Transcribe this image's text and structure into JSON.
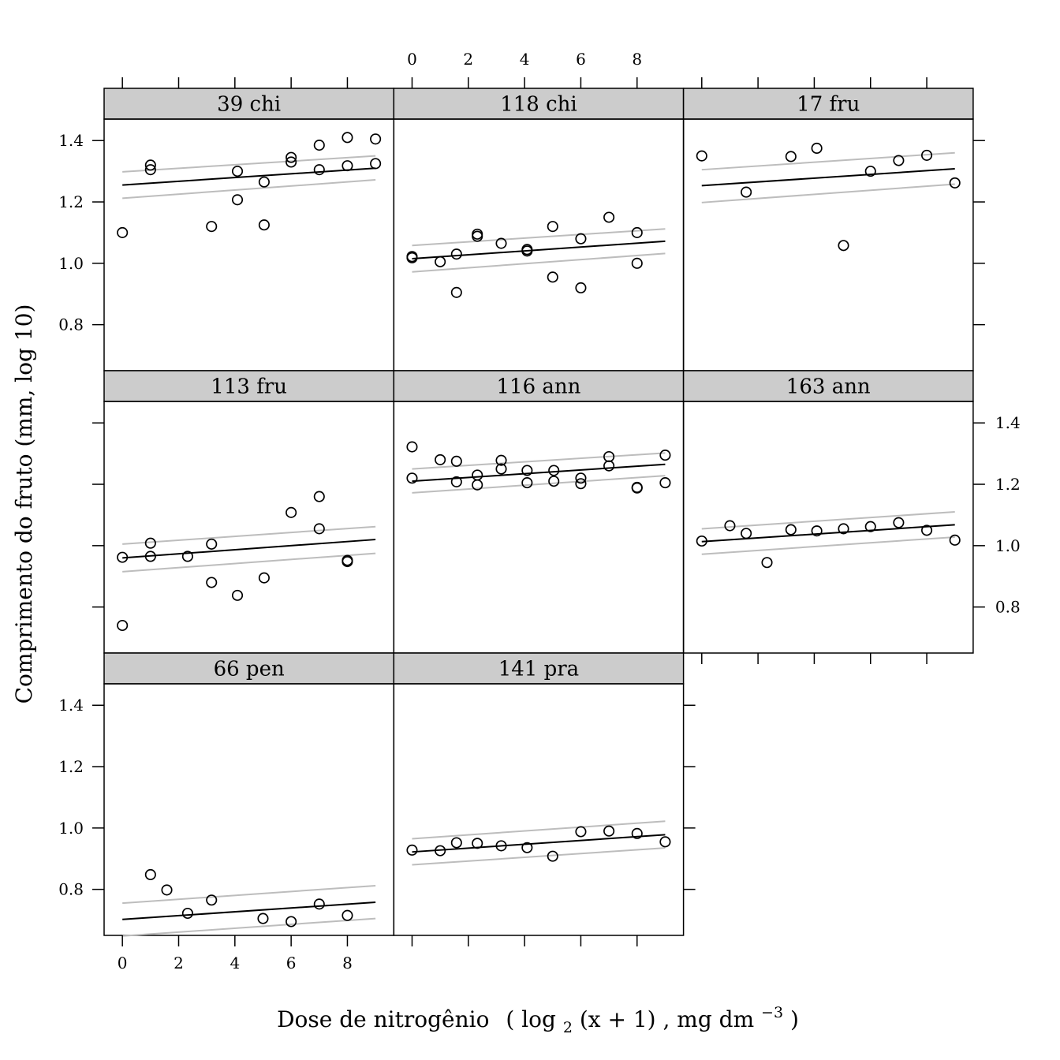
{
  "chart_data": {
    "type": "scatter",
    "layout": {
      "columns": 3,
      "rows": 3
    },
    "xlabel": "Dose de nitrogênio",
    "xlabel_math": {
      "open": "(",
      "log": "log",
      "sub": "2",
      "arg": "(x + 1)",
      "units": ", mg  dm",
      "sup": "−3",
      "close": ")"
    },
    "ylabel": "Comprimento do fruto (mm, log 10)",
    "xlim": [
      -0.65,
      9.65
    ],
    "ylim": [
      0.65,
      1.47
    ],
    "x_ticks": [
      0,
      2,
      4,
      6,
      8
    ],
    "y_ticks": [
      0.8,
      1.0,
      1.2,
      1.4
    ],
    "x_tick_labels": [
      "0",
      "2",
      "4",
      "6",
      "8"
    ],
    "y_tick_labels": [
      "0.8",
      "1.0",
      "1.2",
      "1.4"
    ],
    "fit_line_color": "#000000",
    "band_color": "#bdbdbd",
    "point_color": "#000000",
    "strip_color": "#cccccc",
    "panels": [
      {
        "name": "39 chi",
        "x": [
          0,
          1,
          1,
          3.17,
          4.09,
          4.09,
          5.04,
          5.04,
          6,
          6,
          7,
          7,
          8,
          8,
          9,
          9
        ],
        "y": [
          1.1,
          1.32,
          1.305,
          1.12,
          1.3,
          1.207,
          1.265,
          1.125,
          1.345,
          1.33,
          1.385,
          1.305,
          1.41,
          1.318,
          1.405,
          1.325
        ],
        "fit": [
          1.255,
          1.31
        ],
        "band_upper": [
          1.298,
          1.35
        ],
        "band_lower": [
          1.212,
          1.272
        ]
      },
      {
        "name": "118 chi",
        "x": [
          0,
          0,
          1,
          1.58,
          1.58,
          2.32,
          2.32,
          3.17,
          4.09,
          4.09,
          5,
          5,
          6,
          6,
          7,
          8,
          8
        ],
        "y": [
          1.018,
          1.022,
          1.005,
          1.03,
          0.905,
          1.095,
          1.088,
          1.065,
          1.045,
          1.04,
          1.12,
          0.955,
          1.08,
          0.92,
          1.15,
          1.1,
          1.0
        ],
        "fit": [
          1.015,
          1.072
        ],
        "band_upper": [
          1.058,
          1.112
        ],
        "band_lower": [
          0.972,
          1.032
        ]
      },
      {
        "name": "17 fru",
        "x": [
          0,
          1.58,
          3.17,
          4.09,
          5.04,
          6,
          7,
          8,
          9
        ],
        "y": [
          1.35,
          1.232,
          1.348,
          1.375,
          1.058,
          1.3,
          1.335,
          1.352,
          1.262
        ],
        "fit": [
          1.253,
          1.308
        ],
        "band_upper": [
          1.305,
          1.36
        ],
        "band_lower": [
          1.198,
          1.258
        ]
      },
      {
        "name": "113 fru",
        "x": [
          0,
          0,
          1,
          1,
          2.32,
          3.17,
          3.17,
          4.09,
          5.04,
          6,
          7,
          7,
          8,
          8
        ],
        "y": [
          0.962,
          0.74,
          1.008,
          0.965,
          0.965,
          1.005,
          0.88,
          0.838,
          0.895,
          1.108,
          1.16,
          1.055,
          0.948,
          0.952
        ],
        "fit": [
          0.96,
          1.02
        ],
        "band_upper": [
          1.005,
          1.062
        ],
        "band_lower": [
          0.915,
          0.975
        ]
      },
      {
        "name": "116 ann",
        "x": [
          0,
          0,
          1,
          1.58,
          1.58,
          2.32,
          2.32,
          3.17,
          3.17,
          4.09,
          4.09,
          5.04,
          5.04,
          6,
          6,
          7,
          7,
          8,
          8,
          9,
          9
        ],
        "y": [
          1.322,
          1.22,
          1.28,
          1.275,
          1.208,
          1.23,
          1.198,
          1.278,
          1.25,
          1.245,
          1.205,
          1.245,
          1.21,
          1.22,
          1.202,
          1.29,
          1.26,
          1.19,
          1.188,
          1.295,
          1.205
        ],
        "fit": [
          1.21,
          1.265
        ],
        "band_upper": [
          1.25,
          1.302
        ],
        "band_lower": [
          1.172,
          1.228
        ]
      },
      {
        "name": "163 ann",
        "x": [
          0,
          1,
          1.58,
          2.32,
          3.17,
          4.09,
          5.04,
          6,
          7,
          8,
          9
        ],
        "y": [
          1.015,
          1.065,
          1.04,
          0.945,
          1.052,
          1.048,
          1.055,
          1.062,
          1.075,
          1.05,
          1.018
        ],
        "fit": [
          1.013,
          1.068
        ],
        "band_upper": [
          1.055,
          1.11
        ],
        "band_lower": [
          0.972,
          1.028
        ]
      },
      {
        "name": "66 pen",
        "x": [
          1,
          1.58,
          2.32,
          3.17,
          5,
          6,
          7,
          8
        ],
        "y": [
          0.848,
          0.798,
          0.722,
          0.765,
          0.705,
          0.695,
          0.752,
          0.715
        ],
        "fit": [
          0.702,
          0.758
        ],
        "band_upper": [
          0.755,
          0.812
        ],
        "band_lower": [
          0.648,
          0.705
        ]
      },
      {
        "name": "141 pra",
        "x": [
          0,
          1,
          1.58,
          2.32,
          3.17,
          4.09,
          5,
          6,
          7,
          8,
          9
        ],
        "y": [
          0.928,
          0.926,
          0.952,
          0.95,
          0.942,
          0.936,
          0.908,
          0.988,
          0.99,
          0.982,
          0.955
        ],
        "fit": [
          0.922,
          0.978
        ],
        "band_upper": [
          0.965,
          1.022
        ],
        "band_lower": [
          0.88,
          0.935
        ]
      }
    ]
  }
}
